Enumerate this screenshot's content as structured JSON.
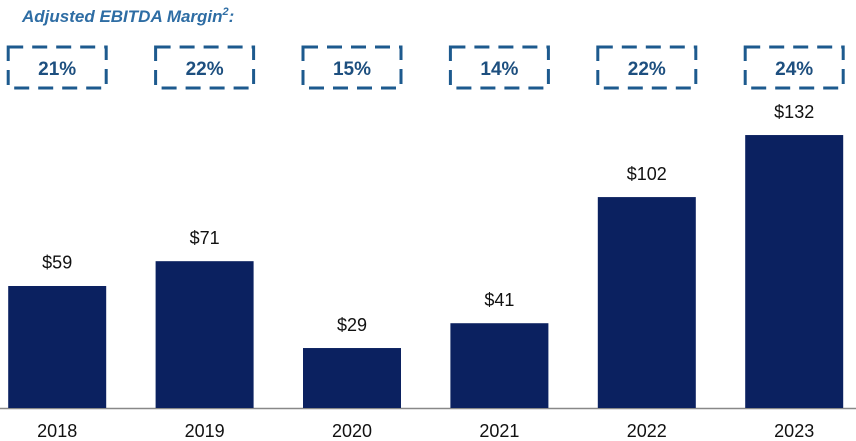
{
  "chart_data": {
    "type": "bar",
    "title": "Adjusted EBITDA Margin",
    "title_note": "2",
    "title_suffix": ":",
    "categories": [
      "2018",
      "2019",
      "2020",
      "2021",
      "2022",
      "2023"
    ],
    "values": [
      59,
      71,
      29,
      41,
      102,
      132
    ],
    "value_labels": [
      "$59",
      "$71",
      "$29",
      "$41",
      "$102",
      "$132"
    ],
    "margins": [
      21,
      22,
      15,
      14,
      22,
      24
    ],
    "margin_labels": [
      "21%",
      "22%",
      "15%",
      "14%",
      "22%",
      "24%"
    ],
    "color": "#0b2160",
    "ylim": [
      0,
      140
    ]
  }
}
